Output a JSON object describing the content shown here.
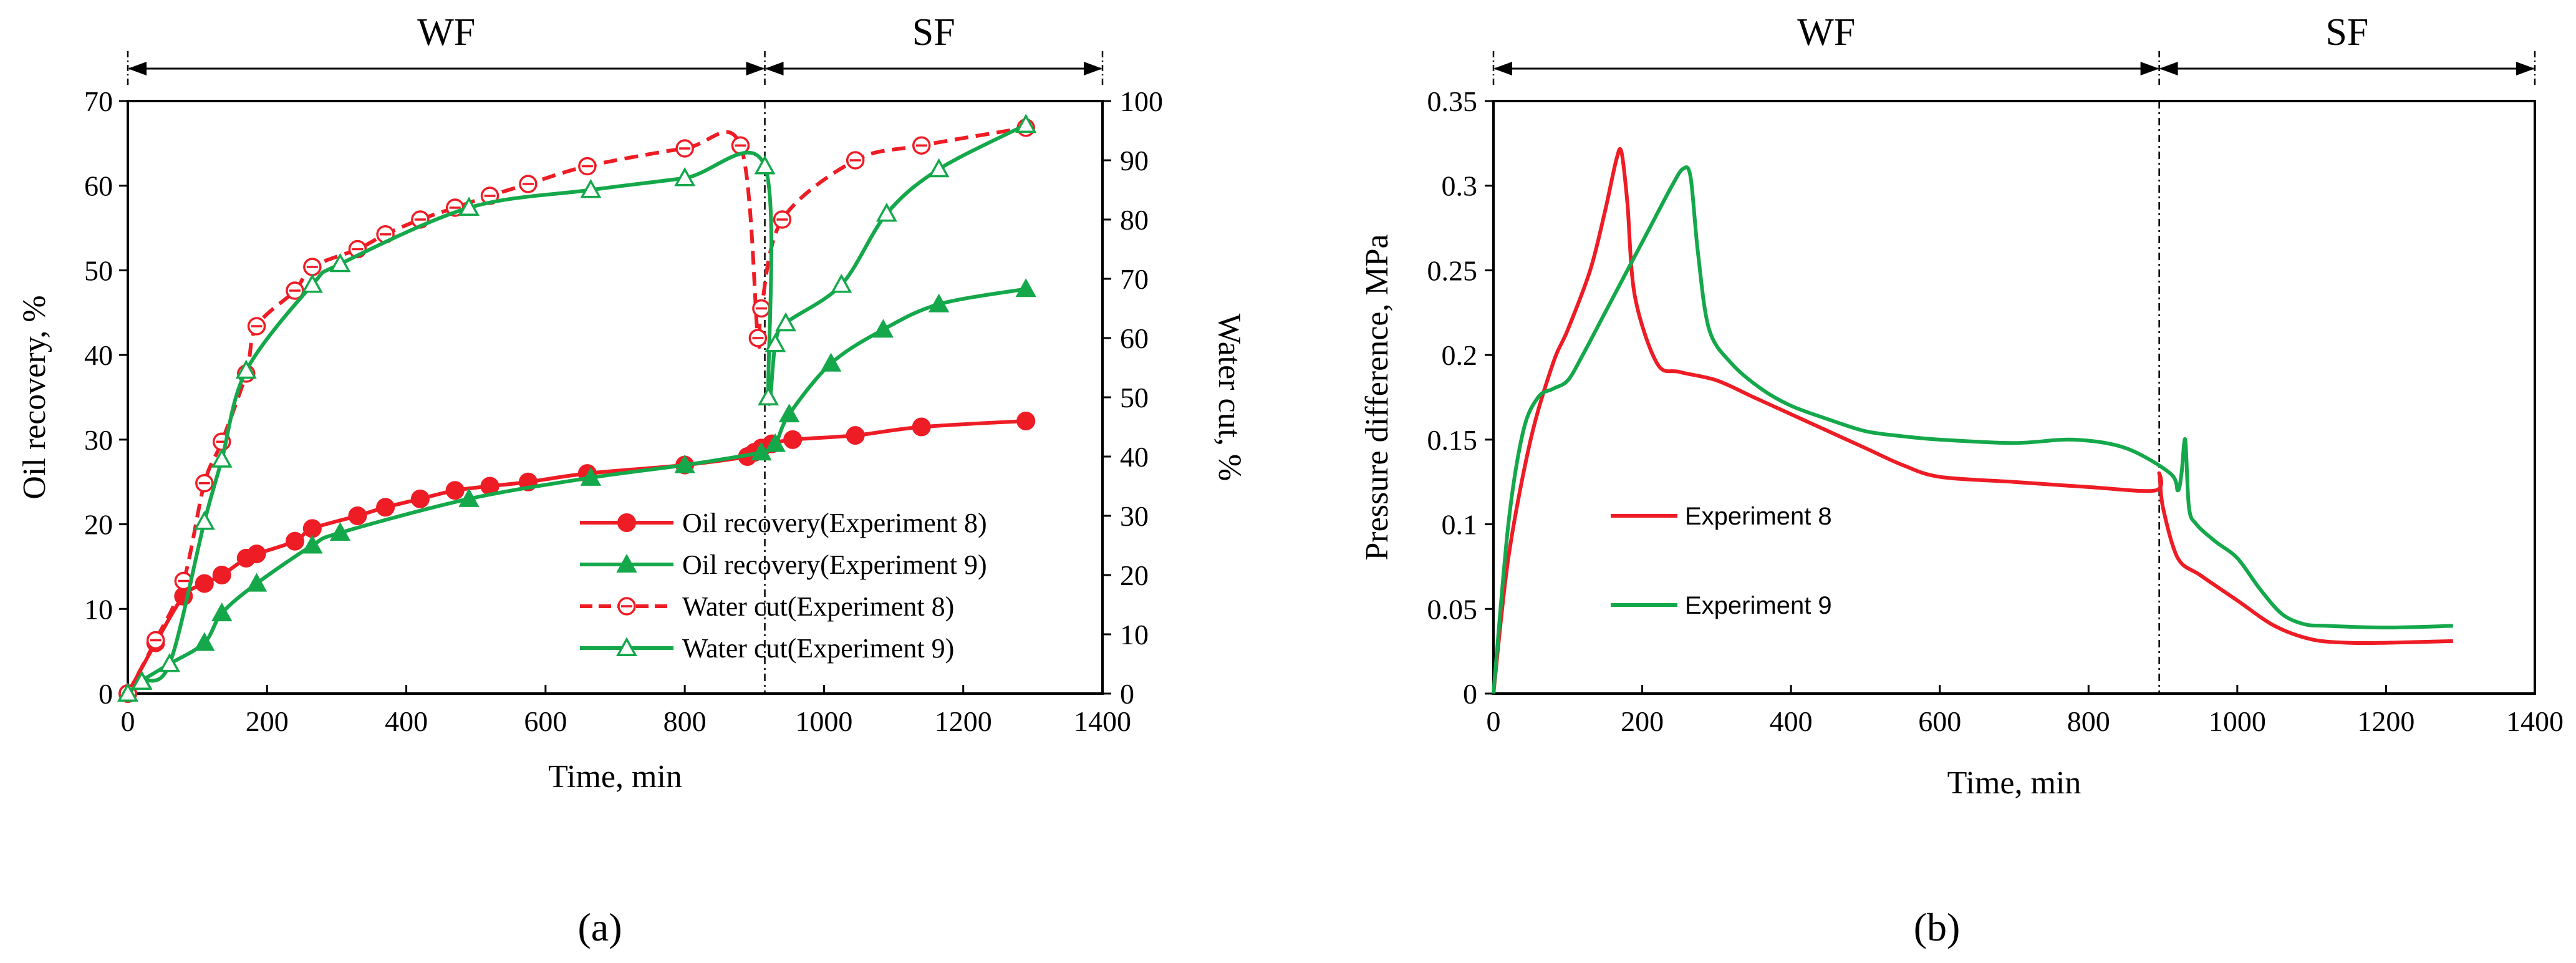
{
  "chart_data": [
    {
      "type": "line",
      "panel_label": "(a)",
      "xlabel": "Time, min",
      "ylabel": "Oil recovery, %",
      "y2label": "Water cut, %",
      "xlim": [
        0,
        1400
      ],
      "ylim": [
        0,
        70
      ],
      "y2lim": [
        0,
        100
      ],
      "xticks": [
        0,
        200,
        400,
        600,
        800,
        1000,
        1200,
        1400
      ],
      "yticks": [
        0,
        10,
        20,
        30,
        40,
        50,
        60,
        70
      ],
      "y2ticks": [
        0,
        10,
        20,
        30,
        40,
        50,
        60,
        70,
        80,
        90,
        100
      ],
      "grid": false,
      "legend_position": "bottom-right",
      "phase_boundary_x": 915,
      "phases": [
        {
          "label": "WF",
          "x_start": 0,
          "x_end": 915
        },
        {
          "label": "SF",
          "x_start": 915,
          "x_end": 1400
        }
      ],
      "series": [
        {
          "name": "Oil recovery(Experiment 8)",
          "axis": "left",
          "color": "#ee1c25",
          "line_style": "solid",
          "marker": "filled-circle",
          "x": [
            0,
            40,
            80,
            110,
            135,
            170,
            185,
            240,
            265,
            330,
            370,
            420,
            470,
            520,
            575,
            660,
            800,
            890,
            900,
            910,
            925,
            955,
            1045,
            1140,
            1290
          ],
          "y": [
            0,
            6,
            11.5,
            13,
            14,
            16,
            16.5,
            18,
            19.5,
            21,
            22,
            23,
            24,
            24.5,
            25,
            26,
            27,
            28,
            28.5,
            29,
            29.5,
            30,
            30.5,
            31.5,
            32.2
          ]
        },
        {
          "name": "Oil recovery(Experiment 9)",
          "axis": "left",
          "color": "#14a84b",
          "line_style": "solid",
          "marker": "filled-triangle",
          "x": [
            0,
            20,
            60,
            110,
            135,
            185,
            265,
            305,
            490,
            665,
            800,
            910,
            930,
            950,
            1010,
            1085,
            1165,
            1290
          ],
          "y": [
            0,
            1.5,
            3.5,
            6,
            9.5,
            13,
            17.5,
            19,
            23,
            25.5,
            27,
            28.5,
            29.5,
            33,
            39,
            43,
            46,
            47.8
          ]
        },
        {
          "name": "Water cut(Experiment 8)",
          "axis": "right",
          "color": "#ee1c25",
          "line_style": "dashed",
          "marker": "open-circle-slash",
          "x": [
            0,
            40,
            80,
            110,
            135,
            170,
            185,
            240,
            265,
            330,
            370,
            420,
            470,
            520,
            575,
            660,
            800,
            880,
            905,
            910,
            940,
            1045,
            1140,
            1290
          ],
          "y": [
            0,
            9,
            19,
            35.5,
            42.5,
            54,
            62,
            68,
            72,
            75,
            77.5,
            80,
            82,
            84,
            86,
            89,
            92,
            92.5,
            60,
            65,
            80,
            90,
            92.5,
            95.5
          ]
        },
        {
          "name": "Water cut(Experiment 9)",
          "axis": "right",
          "color": "#14a84b",
          "line_style": "solid",
          "marker": "open-triangle",
          "x": [
            0,
            20,
            60,
            110,
            135,
            170,
            265,
            305,
            490,
            665,
            800,
            915,
            920,
            930,
            945,
            1025,
            1090,
            1165,
            1290
          ],
          "y": [
            0,
            2,
            5,
            29,
            39.5,
            54.5,
            69,
            72.5,
            82,
            85,
            87,
            89,
            50,
            59,
            62.5,
            69,
            81,
            88.5,
            96
          ]
        }
      ]
    },
    {
      "type": "line",
      "panel_label": "(b)",
      "xlabel": "Time, min",
      "ylabel": "Pressure difference, MPa",
      "xlim": [
        0,
        1400
      ],
      "ylim": [
        0,
        0.35
      ],
      "xticks": [
        0,
        200,
        400,
        600,
        800,
        1000,
        1200,
        1400
      ],
      "yticks": [
        0,
        0.05,
        0.1,
        0.15,
        0.2,
        0.25,
        0.3,
        0.35
      ],
      "ytick_labels": [
        "0",
        "0.05",
        "0.1",
        "0.15",
        "0.2",
        "0.25",
        "0.3",
        "0.35"
      ],
      "grid": false,
      "legend_position": "center-left",
      "phase_boundary_x": 895,
      "phases": [
        {
          "label": "WF",
          "x_start": 0,
          "x_end": 895
        },
        {
          "label": "SF",
          "x_start": 895,
          "x_end": 1400
        }
      ],
      "series": [
        {
          "name": "Experiment 8",
          "color": "#ee1c25",
          "line_style": "solid",
          "x": [
            0,
            20,
            50,
            80,
            100,
            130,
            150,
            165,
            172,
            180,
            190,
            220,
            250,
            300,
            350,
            400,
            450,
            500,
            550,
            600,
            700,
            800,
            890,
            895,
            900,
            920,
            950,
            1000,
            1050,
            1100,
            1150,
            1200,
            1290
          ],
          "y": [
            0,
            0.08,
            0.15,
            0.195,
            0.215,
            0.25,
            0.285,
            0.315,
            0.32,
            0.29,
            0.235,
            0.195,
            0.19,
            0.185,
            0.175,
            0.165,
            0.155,
            0.145,
            0.135,
            0.128,
            0.125,
            0.122,
            0.12,
            0.13,
            0.11,
            0.08,
            0.07,
            0.055,
            0.04,
            0.032,
            0.03,
            0.03,
            0.031
          ]
        },
        {
          "name": "Experiment 9",
          "color": "#14a84b",
          "line_style": "solid",
          "x": [
            0,
            20,
            40,
            60,
            80,
            100,
            120,
            150,
            180,
            210,
            240,
            255,
            265,
            275,
            290,
            320,
            360,
            400,
            450,
            500,
            550,
            600,
            700,
            780,
            850,
            910,
            920,
            925,
            930,
            935,
            945,
            970,
            1000,
            1030,
            1060,
            1090,
            1120,
            1200,
            1290
          ],
          "y": [
            0,
            0.1,
            0.155,
            0.175,
            0.18,
            0.185,
            0.2,
            0.225,
            0.25,
            0.275,
            0.3,
            0.31,
            0.305,
            0.26,
            0.215,
            0.195,
            0.18,
            0.17,
            0.162,
            0.155,
            0.152,
            0.15,
            0.148,
            0.15,
            0.145,
            0.13,
            0.12,
            0.13,
            0.15,
            0.11,
            0.1,
            0.09,
            0.08,
            0.062,
            0.047,
            0.041,
            0.04,
            0.039,
            0.04
          ]
        }
      ]
    }
  ]
}
